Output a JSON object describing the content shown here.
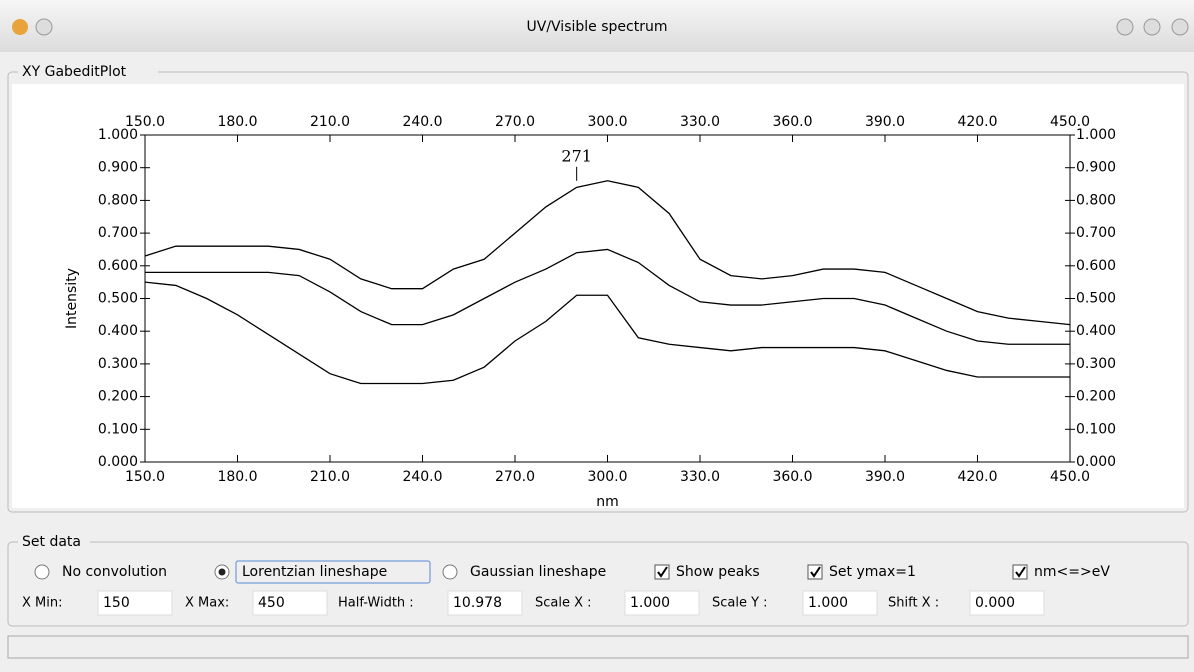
{
  "window": {
    "title": "UV/Visible spectrum",
    "group": "XY GabeditPlot"
  },
  "chart_data": {
    "type": "line",
    "xlabel": "nm",
    "ylabel": "Intensity",
    "x": [
      150,
      160,
      170,
      180,
      190,
      200,
      210,
      220,
      230,
      240,
      250,
      260,
      270,
      280,
      290,
      300,
      310,
      320,
      330,
      340,
      350,
      360,
      370,
      380,
      390,
      400,
      410,
      420,
      430,
      440,
      450
    ],
    "series": [
      {
        "color": "#000000",
        "values": [
          0.63,
          0.66,
          0.66,
          0.66,
          0.66,
          0.65,
          0.62,
          0.56,
          0.53,
          0.53,
          0.59,
          0.62,
          0.7,
          0.78,
          0.84,
          0.86,
          0.84,
          0.76,
          0.62,
          0.57,
          0.56,
          0.57,
          0.59,
          0.59,
          0.58,
          0.54,
          0.5,
          0.46,
          0.44,
          0.43,
          0.42
        ]
      },
      {
        "color": "#000000",
        "values": [
          0.58,
          0.58,
          0.58,
          0.58,
          0.58,
          0.57,
          0.52,
          0.46,
          0.42,
          0.42,
          0.45,
          0.5,
          0.55,
          0.59,
          0.64,
          0.65,
          0.61,
          0.54,
          0.49,
          0.48,
          0.48,
          0.49,
          0.5,
          0.5,
          0.48,
          0.44,
          0.4,
          0.37,
          0.36,
          0.36,
          0.36
        ]
      },
      {
        "color": "#000000",
        "values": [
          0.55,
          0.54,
          0.5,
          0.45,
          0.39,
          0.33,
          0.27,
          0.24,
          0.24,
          0.24,
          0.25,
          0.29,
          0.37,
          0.43,
          0.51,
          0.51,
          0.38,
          0.36,
          0.35,
          0.34,
          0.35,
          0.35,
          0.35,
          0.35,
          0.34,
          0.31,
          0.28,
          0.26,
          0.26,
          0.26,
          0.26
        ]
      }
    ],
    "annotations": [
      {
        "label": "271",
        "x": 290,
        "y": 0.86
      }
    ],
    "xlim": [
      150,
      450
    ],
    "xticks": [
      {
        "value": 150,
        "label": "150.0"
      },
      {
        "value": 180,
        "label": "180.0"
      },
      {
        "value": 210,
        "label": "210.0"
      },
      {
        "value": 240,
        "label": "240.0"
      },
      {
        "value": 270,
        "label": "270.0"
      },
      {
        "value": 300,
        "label": "300.0"
      },
      {
        "value": 330,
        "label": "330.0"
      },
      {
        "value": 360,
        "label": "360.0"
      },
      {
        "value": 390,
        "label": "390.0"
      },
      {
        "value": 420,
        "label": "420.0"
      },
      {
        "value": 450,
        "label": "450.0"
      }
    ],
    "ylim": [
      0,
      1
    ],
    "yticks": [
      {
        "value": 0,
        "label": "0.000"
      },
      {
        "value": 0.1,
        "label": "0.100"
      },
      {
        "value": 0.2,
        "label": "0.200"
      },
      {
        "value": 0.3,
        "label": "0.300"
      },
      {
        "value": 0.4,
        "label": "0.400"
      },
      {
        "value": 0.5,
        "label": "0.500"
      },
      {
        "value": 0.6,
        "label": "0.600"
      },
      {
        "value": 0.7,
        "label": "0.700"
      },
      {
        "value": 0.8,
        "label": "0.800"
      },
      {
        "value": 0.9,
        "label": "0.900"
      },
      {
        "value": 1,
        "label": "1.000"
      }
    ],
    "grid": false
  },
  "controls": {
    "group": "Set data",
    "radios": [
      {
        "label": "No convolution",
        "checked": false
      },
      {
        "label": "Lorentzian lineshape",
        "checked": true
      },
      {
        "label": "Gaussian lineshape",
        "checked": false
      }
    ],
    "checkboxes": [
      {
        "label": "Show peaks",
        "checked": true
      },
      {
        "label": "Set ymax=1",
        "checked": true
      },
      {
        "label": "nm<=>eV",
        "checked": true
      }
    ],
    "fields": [
      {
        "label": "X Min:",
        "value": "150"
      },
      {
        "label": "X Max:",
        "value": "450"
      },
      {
        "label": "Half-Width :",
        "value": "10.978"
      },
      {
        "label": "Scale X :",
        "value": "1.000"
      },
      {
        "label": "Scale Y :",
        "value": "1.000"
      },
      {
        "label": "Shift X :",
        "value": "0.000"
      }
    ]
  }
}
